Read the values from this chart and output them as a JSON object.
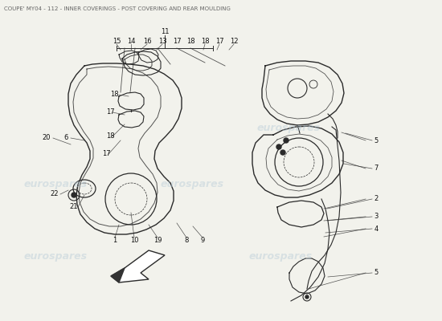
{
  "title": "COUPE' MY04 - 112 - INNER COVERINGS - POST COVERING AND REAR MOULDING",
  "title_fontsize": 5.0,
  "title_color": "#666666",
  "bg_color": "#f2f2ec",
  "watermark_text": "eurospares",
  "watermark_color": "#b8ccd8",
  "watermark_alpha": 0.45,
  "line_color": "#2a2a2a",
  "label_color": "#111111",
  "label_fontsize": 6.0
}
